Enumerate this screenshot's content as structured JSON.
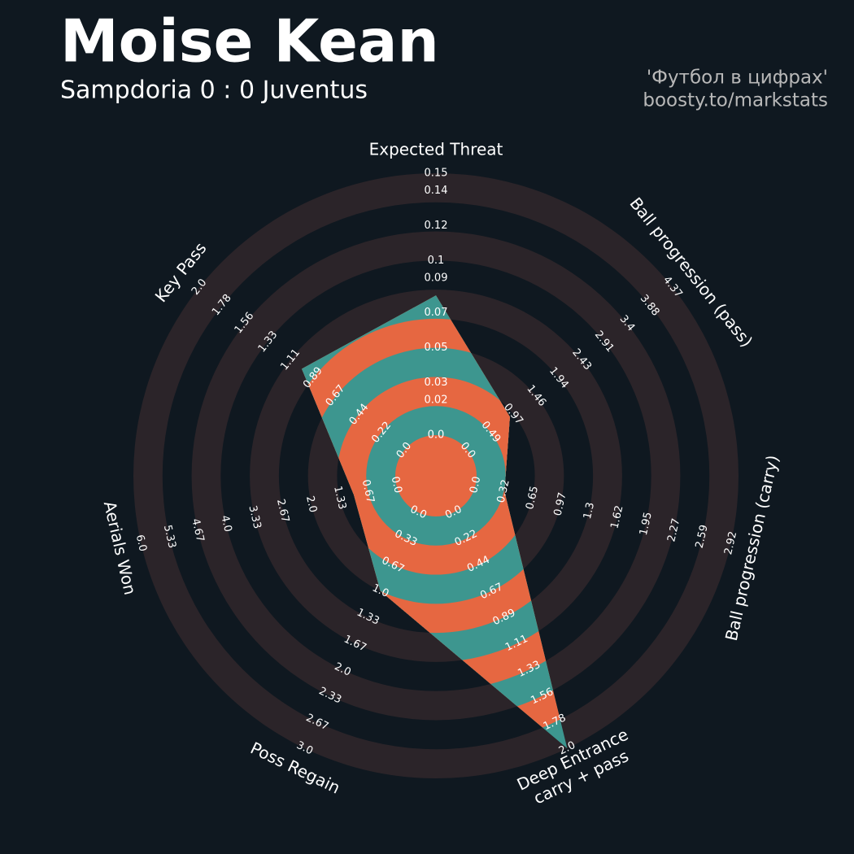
{
  "chart_data": {
    "type": "radar",
    "title": "Moise Kean",
    "subtitle": "Sampdoria 0 : 0 Juventus",
    "credits": [
      "'Футбол в цифрах'",
      "boosty.to/markstats"
    ],
    "params": [
      "Expected Threat",
      "Ball progression (pass)",
      "Ball progression (carry)",
      "Deep Entrance\ncarry + pass",
      "Poss Regain",
      "Aerials Won",
      "Key Pass"
    ],
    "values": [
      0.08,
      0.9,
      0.33,
      2,
      1,
      1,
      1
    ],
    "ranges": [
      [
        0,
        0.15
      ],
      [
        0,
        4.37
      ],
      [
        0,
        2.92
      ],
      [
        0,
        2
      ],
      [
        0,
        3
      ],
      [
        0,
        6
      ],
      [
        0,
        2
      ]
    ],
    "ticks": [
      [
        {
          "value": 0,
          "label": "0.0"
        },
        0.02,
        0.03,
        0.05,
        0.07,
        0.09,
        0.1,
        0.12,
        0.14,
        0.15
      ],
      [
        {
          "value": 0,
          "label": "0.0"
        },
        0.49,
        0.97,
        1.46,
        1.94,
        2.43,
        2.91,
        3.4,
        3.88,
        4.37
      ],
      [
        {
          "value": 0,
          "label": "0.0"
        },
        0.32,
        0.65,
        0.97,
        1.3,
        1.62,
        1.95,
        2.27,
        2.59,
        2.92
      ],
      [
        {
          "value": 0,
          "label": "0.0"
        },
        0.22,
        0.44,
        0.67,
        0.89,
        1.11,
        1.33,
        1.56,
        1.78,
        {
          "value": 2,
          "label": "2.0"
        }
      ],
      [
        {
          "value": 0,
          "label": "0.0"
        },
        0.33,
        0.67,
        {
          "value": 1,
          "label": "1.0"
        },
        1.33,
        1.67,
        {
          "value": 2,
          "label": "2.0"
        },
        2.33,
        2.67,
        {
          "value": 3,
          "label": "3.0"
        }
      ],
      [
        {
          "value": 0,
          "label": "0.0"
        },
        0.67,
        1.33,
        {
          "value": 2,
          "label": "2.0"
        },
        2.67,
        3.33,
        {
          "value": 4,
          "label": "4.0"
        },
        4.67,
        5.33,
        {
          "value": 6,
          "label": "6.0"
        }
      ],
      [
        {
          "value": 0,
          "label": "0.0"
        },
        0.22,
        0.44,
        0.67,
        0.89,
        1.11,
        1.33,
        1.56,
        1.78,
        {
          "value": 2,
          "label": "2.0"
        }
      ]
    ],
    "colors": {
      "ring": "#2b2429",
      "fill_a": "#3d968f",
      "fill_b": "#e66741"
    }
  }
}
